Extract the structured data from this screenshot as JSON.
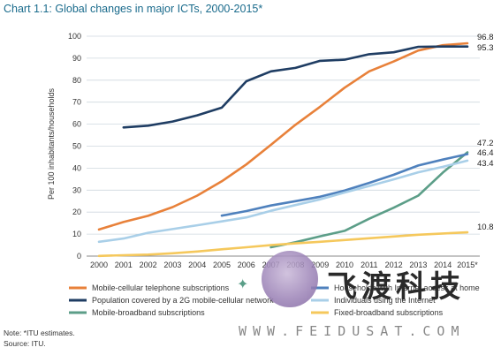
{
  "title": "Chart 1.1:  Global changes in major ICTs, 2000-2015*",
  "notes": {
    "note": "Note: *ITU estimates.",
    "source": "Source: ITU."
  },
  "watermark": {
    "chinese": "飞渡科技",
    "url": "WWW.FEIDUSAT.COM"
  },
  "chart_data": {
    "type": "line",
    "title": "Global changes in major ICTs, 2000-2015*",
    "ylabel": "Per 100 inhabitants/households",
    "xlabel": "",
    "ylim": [
      0,
      100
    ],
    "yticks": [
      0,
      10,
      20,
      30,
      40,
      50,
      60,
      70,
      80,
      90,
      100
    ],
    "categories": [
      "2000",
      "2001",
      "2002",
      "2003",
      "2004",
      "2005",
      "2006",
      "2007",
      "2008",
      "2009",
      "2010",
      "2011",
      "2012",
      "2013",
      "2014",
      "2015*"
    ],
    "grid": "horizontal",
    "legend": "bottom",
    "series": [
      {
        "name": "Mobile-cellular telephone subscriptions",
        "color": "#e8813a",
        "end_label": "96.8",
        "values": [
          12.1,
          15.5,
          18.3,
          22.3,
          27.5,
          34,
          41.7,
          50.6,
          59.7,
          67.9,
          76.6,
          84,
          88.5,
          93.5,
          95.9,
          96.8
        ]
      },
      {
        "name": "Population covered by a 2G mobile-cellular network",
        "color": "#1f3d63",
        "end_label": "95.3",
        "values": [
          null,
          58.5,
          59.3,
          61.2,
          64,
          67.5,
          79.5,
          84,
          85.6,
          88.8,
          89.3,
          91.8,
          92.7,
          95.2,
          95.3,
          95.3
        ]
      },
      {
        "name": "Mobile-broadband subscriptions",
        "color": "#5c9e88",
        "end_label": "47.2",
        "values": [
          null,
          null,
          null,
          null,
          null,
          null,
          null,
          4,
          6.3,
          9,
          11.5,
          17,
          22,
          27.5,
          38,
          47.2
        ]
      },
      {
        "name": "Households with Internet access at home",
        "color": "#4f81bd",
        "end_label": "46.4",
        "values": [
          null,
          null,
          null,
          null,
          null,
          18.4,
          20.5,
          23,
          25,
          27,
          29.8,
          33.3,
          37,
          41.2,
          43.9,
          46.4
        ]
      },
      {
        "name": "Individuals using the Internet",
        "color": "#a9cfe8",
        "end_label": "43.4",
        "values": [
          6.5,
          8,
          10.6,
          12.3,
          14,
          15.8,
          17.6,
          20.6,
          23.2,
          25.8,
          28.9,
          31.9,
          34.9,
          38.1,
          40.6,
          43.4
        ]
      },
      {
        "name": "Fixed-broadband subscriptions",
        "color": "#f5c85c",
        "end_label": "10.8",
        "values": [
          0.1,
          0.4,
          0.7,
          1.3,
          2.1,
          3.1,
          4,
          5,
          5.8,
          6.5,
          7.3,
          8.1,
          8.9,
          9.7,
          10.3,
          10.8
        ]
      }
    ]
  }
}
